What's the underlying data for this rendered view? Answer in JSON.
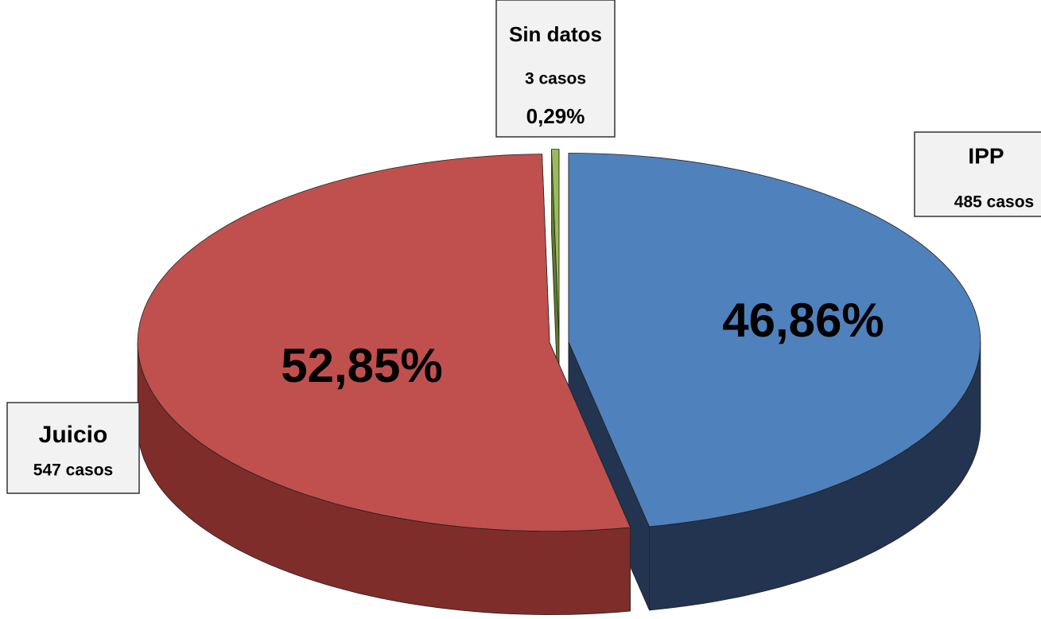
{
  "chart_data": {
    "type": "pie",
    "categories": [
      "IPP",
      "Juicio",
      "Sin datos"
    ],
    "values": [
      46.86,
      52.85,
      0.29
    ],
    "value_labels": [
      "46,86%",
      "52,85%",
      "0,29%"
    ],
    "count_labels": [
      "485 casos",
      "547 casos",
      "3 casos"
    ],
    "colors": [
      "#4f81bd",
      "#c0504d",
      "#9bbb59"
    ],
    "side_colors": [
      "#22344f",
      "#7e2d2b",
      "#5f7a2c"
    ]
  }
}
